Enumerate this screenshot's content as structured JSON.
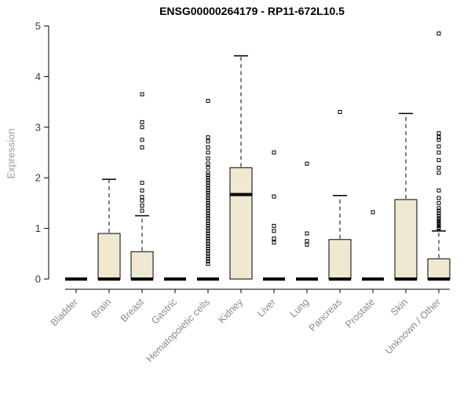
{
  "chart_data": {
    "type": "boxplot",
    "title": "ENSG00000264179 - RP11-672L10.5",
    "ylabel": "Expression",
    "xlabel": "",
    "ylim": [
      0,
      5
    ],
    "yticks": [
      0,
      1,
      2,
      3,
      4,
      5
    ],
    "grid": false,
    "legend": "none",
    "categories": [
      "Bladder",
      "Brain",
      "Breast",
      "Gastric",
      "Hematopoietic cells",
      "Kidney",
      "Liver",
      "Lung",
      "Pancreas",
      "Prostate",
      "Skin",
      "Unknown / Other"
    ],
    "series": [
      {
        "category": "Bladder",
        "q1": 0,
        "median": 0,
        "q3": 0,
        "whisker_low": 0,
        "whisker_high": 0,
        "outliers": []
      },
      {
        "category": "Brain",
        "q1": 0,
        "median": 0,
        "q3": 0.9,
        "whisker_low": 0,
        "whisker_high": 1.97,
        "outliers": []
      },
      {
        "category": "Breast",
        "q1": 0,
        "median": 0,
        "q3": 0.54,
        "whisker_low": 0,
        "whisker_high": 1.25,
        "outliers": [
          1.35,
          1.45,
          1.55,
          1.62,
          1.75,
          1.9,
          2.6,
          2.75,
          3.0,
          3.1,
          3.65
        ]
      },
      {
        "category": "Gastric",
        "q1": 0,
        "median": 0,
        "q3": 0,
        "whisker_low": 0,
        "whisker_high": 0,
        "outliers": []
      },
      {
        "category": "Hematopoietic cells",
        "q1": 0,
        "median": 0,
        "q3": 0,
        "whisker_low": 0,
        "whisker_high": 0,
        "outliers": [
          0.3,
          0.35,
          0.4,
          0.45,
          0.5,
          0.55,
          0.6,
          0.65,
          0.7,
          0.75,
          0.8,
          0.85,
          0.9,
          0.95,
          1.0,
          1.05,
          1.1,
          1.15,
          1.2,
          1.25,
          1.3,
          1.35,
          1.4,
          1.45,
          1.5,
          1.55,
          1.6,
          1.65,
          1.7,
          1.75,
          1.8,
          1.85,
          1.9,
          1.95,
          2.0,
          2.05,
          2.1,
          2.2,
          2.28,
          2.38,
          2.5,
          2.6,
          2.72,
          2.8,
          3.52
        ]
      },
      {
        "category": "Kidney",
        "q1": 0,
        "median": 1.67,
        "q3": 2.2,
        "whisker_low": 0,
        "whisker_high": 4.41,
        "outliers": []
      },
      {
        "category": "Liver",
        "q1": 0,
        "median": 0,
        "q3": 0,
        "whisker_low": 0,
        "whisker_high": 0,
        "outliers": [
          0.72,
          0.8,
          0.95,
          1.05,
          1.63,
          2.5
        ]
      },
      {
        "category": "Lung",
        "q1": 0,
        "median": 0,
        "q3": 0,
        "whisker_low": 0,
        "whisker_high": 0,
        "outliers": [
          0.68,
          0.75,
          0.9,
          2.28
        ]
      },
      {
        "category": "Pancreas",
        "q1": 0,
        "median": 0,
        "q3": 0.78,
        "whisker_low": 0,
        "whisker_high": 1.65,
        "outliers": [
          3.3
        ]
      },
      {
        "category": "Prostate",
        "q1": 0,
        "median": 0,
        "q3": 0,
        "whisker_low": 0,
        "whisker_high": 0,
        "outliers": [
          1.32
        ]
      },
      {
        "category": "Skin",
        "q1": 0,
        "median": 0,
        "q3": 1.57,
        "whisker_low": 0,
        "whisker_high": 3.27,
        "outliers": []
      },
      {
        "category": "Unknown / Other",
        "q1": 0,
        "median": 0,
        "q3": 0.4,
        "whisker_low": 0,
        "whisker_high": 0.95,
        "outliers": [
          1.0,
          1.02,
          1.05,
          1.08,
          1.1,
          1.12,
          1.15,
          1.18,
          1.2,
          1.25,
          1.3,
          1.35,
          1.4,
          1.5,
          1.6,
          1.75,
          2.1,
          2.2,
          2.35,
          2.5,
          2.62,
          2.75,
          2.8,
          2.88,
          4.85
        ]
      }
    ],
    "colors": {
      "box_fill": "#F0E9D2",
      "box_stroke": "#000000",
      "axis": "#000000",
      "tick_label": "#3A3A3A",
      "category_label": "#8A8A8A",
      "ylabel_color": "#999999",
      "title_color": "#000000",
      "background": "#FFFFFF"
    }
  }
}
